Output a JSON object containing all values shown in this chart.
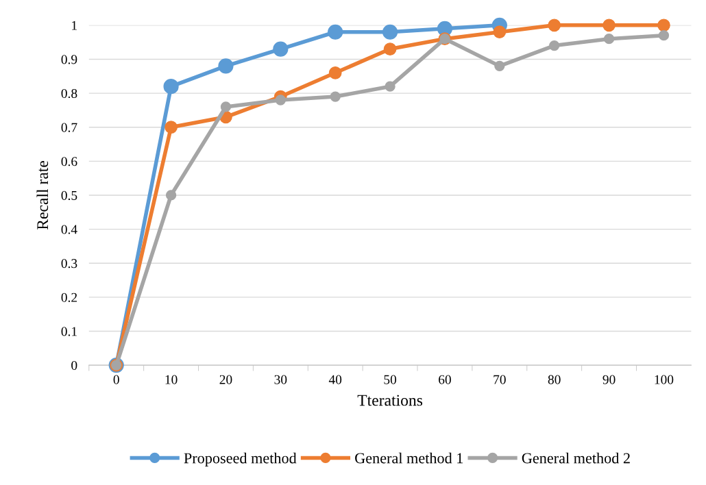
{
  "chart_data": {
    "type": "line",
    "xlabel": "Tterations",
    "ylabel": "Recall rate",
    "categories": [
      "0",
      "10",
      "20",
      "30",
      "40",
      "50",
      "60",
      "70",
      "80",
      "90",
      "100"
    ],
    "series": [
      {
        "name": "Proposeed method",
        "color": "#5b9bd5",
        "values": [
          0,
          0.82,
          0.88,
          0.93,
          0.98,
          0.98,
          0.99,
          1.0,
          null,
          null,
          null
        ]
      },
      {
        "name": "General method 1",
        "color": "#ed7d31",
        "values": [
          0,
          0.7,
          0.73,
          0.79,
          0.86,
          0.93,
          0.96,
          0.98,
          1.0,
          1.0,
          1.0
        ]
      },
      {
        "name": "General method 2",
        "color": "#a5a5a5",
        "values": [
          0,
          0.5,
          0.76,
          0.78,
          0.79,
          0.82,
          0.96,
          0.88,
          0.94,
          0.96,
          0.97
        ]
      }
    ],
    "ylim": [
      0,
      1
    ],
    "yticks": [
      0,
      0.1,
      0.2,
      0.3,
      0.4,
      0.5,
      0.6,
      0.7,
      0.8,
      0.9,
      1
    ],
    "grid": "y",
    "legend": "bottom",
    "marker": "circle",
    "line_style": "solid"
  }
}
